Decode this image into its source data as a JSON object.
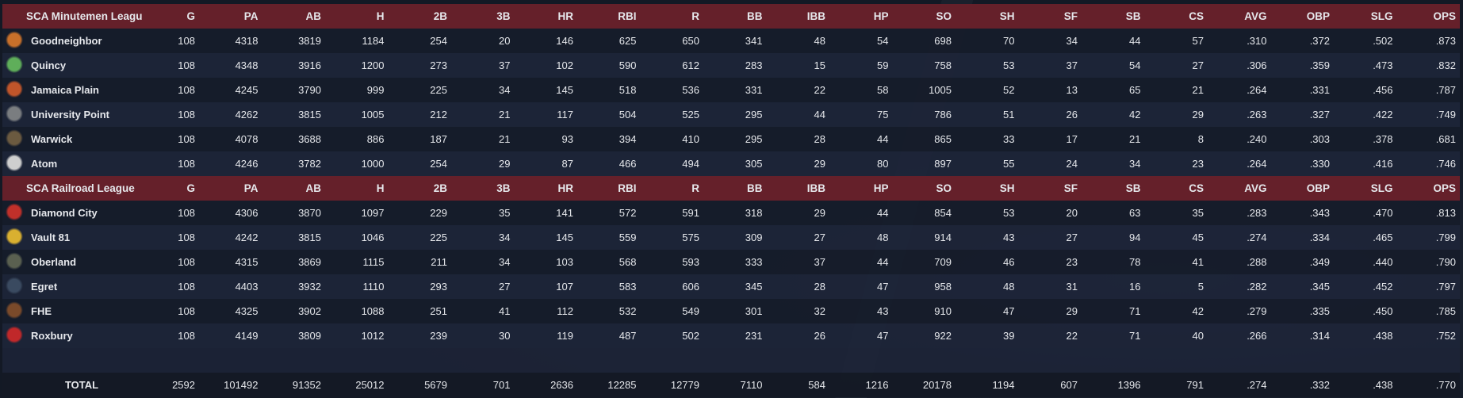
{
  "columns": [
    "G",
    "PA",
    "AB",
    "H",
    "2B",
    "3B",
    "HR",
    "RBI",
    "R",
    "BB",
    "IBB",
    "HP",
    "SO",
    "SH",
    "SF",
    "SB",
    "CS",
    "AVG",
    "OBP",
    "SLG",
    "OPS"
  ],
  "colors": {
    "header_bg": "#65202a",
    "row_dark": "#161c2a",
    "row_light": "#1d2538",
    "text": "#e6e8ec"
  },
  "leagues": [
    {
      "name": "SCA Minutemen Leagu",
      "teams": [
        {
          "name": "Goodneighbor",
          "icon": "goodneighbor-logo-icon",
          "icon_color": "#c8702a",
          "stats": [
            "108",
            "4318",
            "3819",
            "1184",
            "254",
            "20",
            "146",
            "625",
            "650",
            "341",
            "48",
            "54",
            "698",
            "70",
            "34",
            "44",
            "57",
            ".310",
            ".372",
            ".502",
            ".873"
          ]
        },
        {
          "name": "Quincy",
          "icon": "quincy-skull-logo-icon",
          "icon_color": "#5fae5a",
          "stats": [
            "108",
            "4348",
            "3916",
            "1200",
            "273",
            "37",
            "102",
            "590",
            "612",
            "283",
            "15",
            "59",
            "758",
            "53",
            "37",
            "54",
            "27",
            ".306",
            ".359",
            ".473",
            ".832"
          ]
        },
        {
          "name": "Jamaica Plain",
          "icon": "jamaica-plain-rocket-logo-icon",
          "icon_color": "#c0552a",
          "stats": [
            "108",
            "4245",
            "3790",
            "999",
            "225",
            "34",
            "145",
            "518",
            "536",
            "331",
            "22",
            "58",
            "1005",
            "52",
            "13",
            "65",
            "21",
            ".264",
            ".331",
            ".456",
            ".787"
          ]
        },
        {
          "name": "University Point",
          "icon": "university-point-logo-icon",
          "icon_color": "#7a7d80",
          "stats": [
            "108",
            "4262",
            "3815",
            "1005",
            "212",
            "21",
            "117",
            "504",
            "525",
            "295",
            "44",
            "75",
            "786",
            "51",
            "26",
            "42",
            "29",
            ".263",
            ".327",
            ".422",
            ".749"
          ]
        },
        {
          "name": "Warwick",
          "icon": "warwick-logo-icon",
          "icon_color": "#6b5a40",
          "stats": [
            "108",
            "4078",
            "3688",
            "886",
            "187",
            "21",
            "93",
            "394",
            "410",
            "295",
            "28",
            "44",
            "865",
            "33",
            "17",
            "21",
            "8",
            ".240",
            ".303",
            ".378",
            ".681"
          ]
        },
        {
          "name": "Atom",
          "icon": "atom-cat-logo-icon",
          "icon_color": "#cfcfcf",
          "stats": [
            "108",
            "4246",
            "3782",
            "1000",
            "254",
            "29",
            "87",
            "466",
            "494",
            "305",
            "29",
            "80",
            "897",
            "55",
            "24",
            "34",
            "23",
            ".264",
            ".330",
            ".416",
            ".746"
          ]
        }
      ]
    },
    {
      "name": "SCA Railroad League",
      "teams": [
        {
          "name": "Diamond City",
          "icon": "diamond-city-logo-icon",
          "icon_color": "#c0302a",
          "stats": [
            "108",
            "4306",
            "3870",
            "1097",
            "229",
            "35",
            "141",
            "572",
            "591",
            "318",
            "29",
            "44",
            "854",
            "53",
            "20",
            "63",
            "35",
            ".283",
            ".343",
            ".470",
            ".813"
          ]
        },
        {
          "name": "Vault 81",
          "icon": "vault-81-logo-icon",
          "icon_color": "#d9b030",
          "stats": [
            "108",
            "4242",
            "3815",
            "1046",
            "225",
            "34",
            "145",
            "559",
            "575",
            "309",
            "27",
            "48",
            "914",
            "43",
            "27",
            "94",
            "45",
            ".274",
            ".334",
            ".465",
            ".799"
          ]
        },
        {
          "name": "Oberland",
          "icon": "oberland-logo-icon",
          "icon_color": "#5a6050",
          "stats": [
            "108",
            "4315",
            "3869",
            "1115",
            "211",
            "34",
            "103",
            "568",
            "593",
            "333",
            "37",
            "44",
            "709",
            "46",
            "23",
            "78",
            "41",
            ".288",
            ".349",
            ".440",
            ".790"
          ]
        },
        {
          "name": "Egret",
          "icon": "egret-logo-icon",
          "icon_color": "#3a4a60",
          "stats": [
            "108",
            "4403",
            "3932",
            "1110",
            "293",
            "27",
            "107",
            "583",
            "606",
            "345",
            "28",
            "47",
            "958",
            "48",
            "31",
            "16",
            "5",
            ".282",
            ".345",
            ".452",
            ".797"
          ]
        },
        {
          "name": "FHE",
          "icon": "fhe-logo-icon",
          "icon_color": "#7a4a2a",
          "stats": [
            "108",
            "4325",
            "3902",
            "1088",
            "251",
            "41",
            "112",
            "532",
            "549",
            "301",
            "32",
            "43",
            "910",
            "47",
            "29",
            "71",
            "42",
            ".279",
            ".335",
            ".450",
            ".785"
          ]
        },
        {
          "name": "Roxbury",
          "icon": "roxbury-r-logo-icon",
          "icon_color": "#c0282a",
          "stats": [
            "108",
            "4149",
            "3809",
            "1012",
            "239",
            "30",
            "119",
            "487",
            "502",
            "231",
            "26",
            "47",
            "922",
            "39",
            "22",
            "71",
            "40",
            ".266",
            ".314",
            ".438",
            ".752"
          ]
        }
      ]
    }
  ],
  "total": {
    "label": "TOTAL",
    "stats": [
      "2592",
      "101492",
      "91352",
      "25012",
      "5679",
      "701",
      "2636",
      "12285",
      "12779",
      "7110",
      "584",
      "1216",
      "20178",
      "1194",
      "607",
      "1396",
      "791",
      ".274",
      ".332",
      ".438",
      ".770"
    ]
  }
}
